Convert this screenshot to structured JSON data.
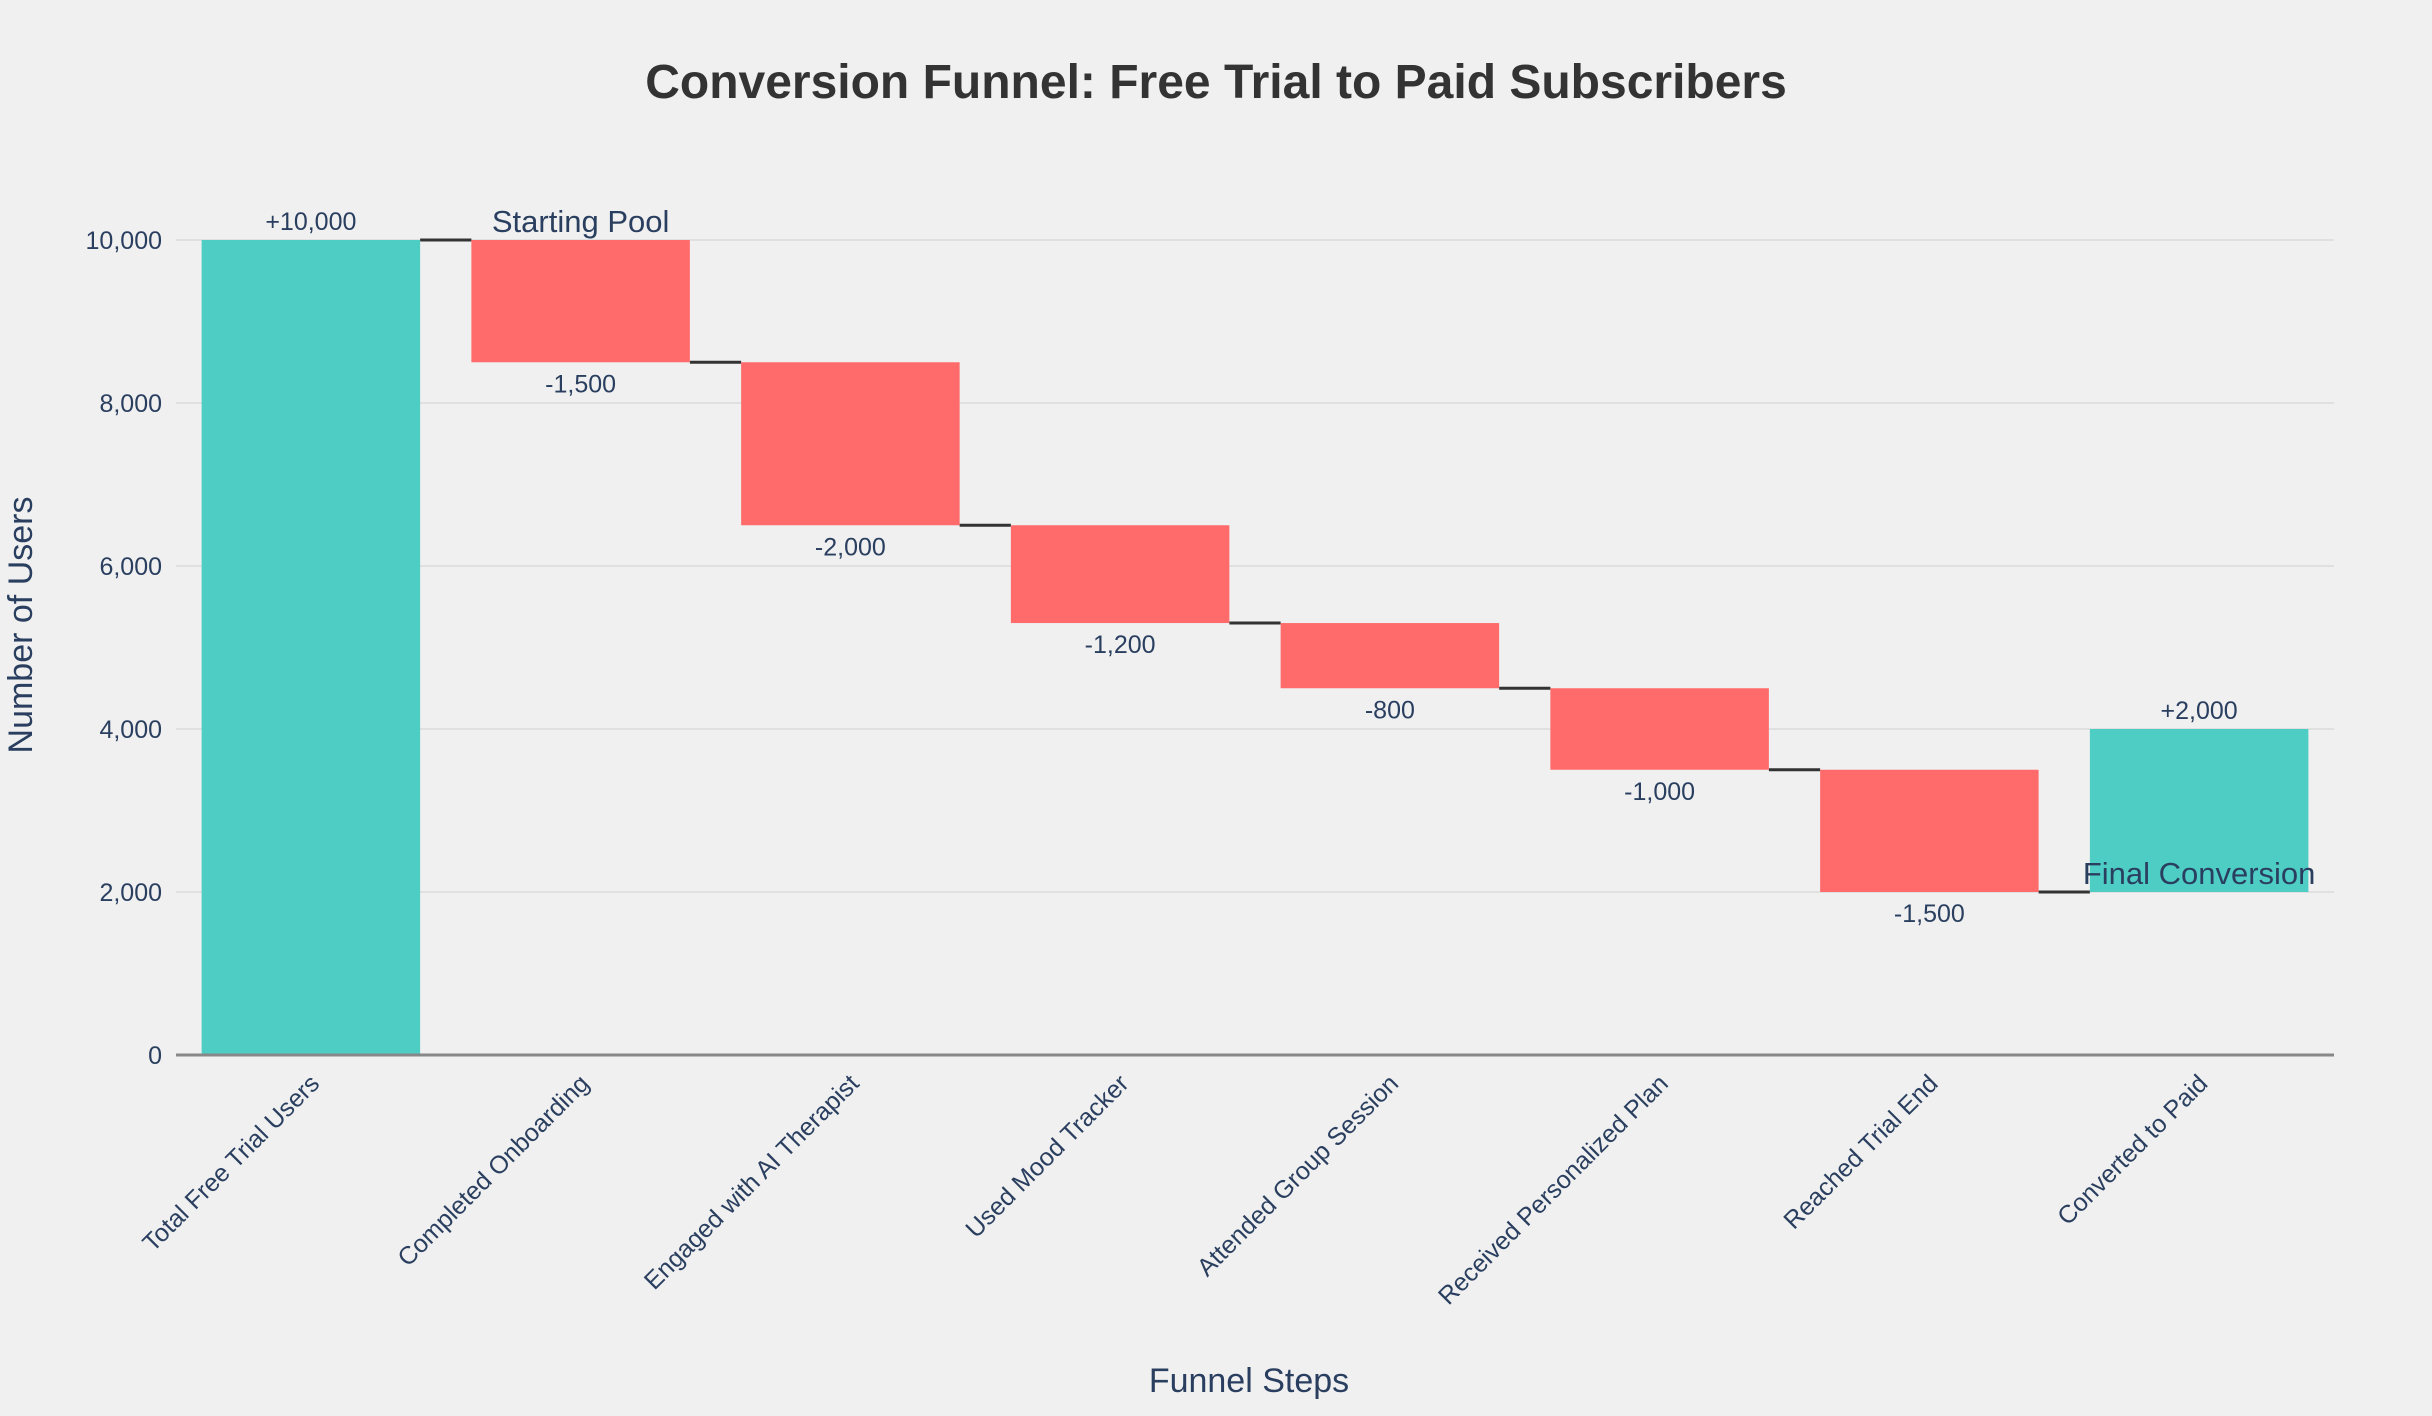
{
  "chart_data": {
    "type": "waterfall",
    "title": "Conversion Funnel: Free Trial to Paid Subscribers",
    "xlabel": "Funnel Steps",
    "ylabel": "Number of Users",
    "categories": [
      "Total Free Trial Users",
      "Completed Onboarding",
      "Engaged with AI Therapist",
      "Used Mood Tracker",
      "Attended Group Session",
      "Received Personalized Plan",
      "Reached Trial End",
      "Converted to Paid"
    ],
    "values": [
      10000,
      -1500,
      -2000,
      -1200,
      -800,
      -1000,
      -1500,
      2000
    ],
    "text_labels": [
      "+10,000",
      "-1,500",
      "-2,000",
      "-1,200",
      "-800",
      "-1,000",
      "-1,500",
      "+2,000"
    ],
    "ylim": [
      0,
      10400
    ],
    "yticks": [
      0,
      2000,
      4000,
      6000,
      8000,
      10000
    ],
    "ytick_labels": [
      "0",
      "2,000",
      "4,000",
      "6,000",
      "8,000",
      "10,000"
    ],
    "grid": true,
    "colors": {
      "increasing": "#4ecdc4",
      "decreasing": "#ff6b6b",
      "connector": "#333333",
      "background": "#f0f0f0"
    },
    "annotations": [
      {
        "text": "Starting Pool",
        "category": "Completed Onboarding",
        "y": 10000
      },
      {
        "text": "Final Conversion",
        "category": "Converted to Paid",
        "y": 2000
      }
    ]
  }
}
